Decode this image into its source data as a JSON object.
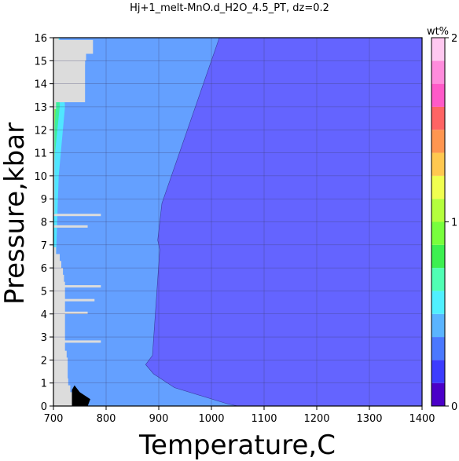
{
  "chart_data": {
    "type": "heatmap",
    "title": "Hj+1_melt-MnO.d_H2O_4.5_PT, dz=0.2",
    "xlabel": "Temperature,C",
    "ylabel": "Pressure,kbar",
    "xlim": [
      700,
      1400
    ],
    "ylim": [
      0,
      16
    ],
    "x_ticks": [
      "700",
      "800",
      "900",
      "1000",
      "1100",
      "1200",
      "1300",
      "1400"
    ],
    "y_ticks": [
      "0",
      "1",
      "2",
      "3",
      "4",
      "5",
      "6",
      "7",
      "8",
      "9",
      "10",
      "11",
      "12",
      "13",
      "14",
      "15",
      "16"
    ],
    "grid": true,
    "colorbar": {
      "label": "wt%",
      "range": [
        0,
        2
      ],
      "ticks": [
        "0",
        "1",
        "2"
      ],
      "step": 0.125,
      "colors": [
        "#4b00c8",
        "#3c3cff",
        "#4a78ff",
        "#5ab4ff",
        "#50f0ff",
        "#50ffb4",
        "#3cf050",
        "#78ff3c",
        "#b4ff3c",
        "#f0ff50",
        "#ffc850",
        "#ff9650",
        "#ff6464",
        "#ff5ac8",
        "#ff8cdc",
        "#ffc8f0"
      ]
    },
    "regions": [
      {
        "name": "",
        "value_range": [
          0.125,
          0.25
        ],
        "color": "#6464ff",
        "boundary": [
          [
            898,
            0
          ],
          [
            1400,
            0
          ],
          [
            1400,
            16
          ],
          [
            1015,
            16
          ],
          [
            906,
            8.8
          ],
          [
            898,
            7.2
          ],
          [
            902,
            6.8
          ],
          [
            888,
            2.2
          ],
          [
            875,
            1.8
          ],
          [
            890,
            1.4
          ],
          [
            930,
            0.8
          ],
          [
            1030,
            0.1
          ],
          [
            1050,
            0
          ]
        ]
      },
      {
        "name": "",
        "value_range": [
          0.25,
          0.375
        ],
        "color": "#64a0ff",
        "boundary": [
          [
            755,
            0
          ],
          [
            1400,
            0
          ],
          [
            1400,
            16
          ],
          [
            1015,
            16
          ],
          [
            906,
            8.8
          ],
          [
            898,
            7.2
          ],
          [
            902,
            6.8
          ],
          [
            888,
            2.2
          ],
          [
            875,
            1.8
          ],
          [
            890,
            1.4
          ],
          [
            930,
            0.8
          ],
          [
            1030,
            0.1
          ],
          [
            1050,
            0
          ]
        ]
      },
      {
        "name": "",
        "value_range": [
          0.375,
          0.5
        ],
        "color": "#50e6ff",
        "boundary": [
          [
            700,
            16
          ],
          [
            712,
            16
          ],
          [
            722,
            13
          ],
          [
            710,
            10
          ],
          [
            705,
            6.5
          ],
          [
            700,
            6.3
          ]
        ]
      },
      {
        "name": "",
        "value_range": [
          0.5,
          0.75
        ],
        "color": "#3cf0a0",
        "boundary": [
          [
            700,
            16
          ],
          [
            708,
            16
          ],
          [
            712,
            13
          ],
          [
            703,
            11
          ],
          [
            700,
            10
          ]
        ]
      },
      {
        "name": "",
        "value_range": [
          0.75,
          1.125
        ],
        "color": "#78f03c",
        "boundary": [
          [
            700,
            16
          ],
          [
            705,
            16
          ],
          [
            707,
            14
          ],
          [
            702,
            12
          ],
          [
            700,
            11.5
          ]
        ]
      }
    ],
    "missing_data_color": "#dcdcdc",
    "missing_data_steps": [
      [
        0,
        735
      ],
      [
        0.3,
        735
      ],
      [
        0.6,
        732
      ],
      [
        0.9,
        728
      ],
      [
        1.2,
        727
      ],
      [
        1.5,
        727
      ],
      [
        1.8,
        727
      ],
      [
        2.1,
        725
      ],
      [
        2.4,
        722
      ],
      [
        2.7,
        722
      ],
      [
        3.0,
        722
      ],
      [
        3.3,
        722
      ],
      [
        3.6,
        722
      ],
      [
        3.9,
        722
      ],
      [
        4.2,
        722
      ],
      [
        4.5,
        722
      ],
      [
        4.8,
        722
      ],
      [
        5.1,
        722
      ],
      [
        5.4,
        720
      ],
      [
        5.7,
        718
      ],
      [
        6.0,
        715
      ],
      [
        6.3,
        712
      ],
      [
        6.6,
        705
      ],
      [
        6.9,
        700
      ],
      [
        8.1,
        700
      ],
      [
        8.4,
        702
      ],
      [
        12.6,
        702
      ],
      [
        12.9,
        705
      ],
      [
        13.2,
        760
      ],
      [
        13.5,
        760
      ],
      [
        15.0,
        762
      ],
      [
        15.3,
        775
      ],
      [
        15.6,
        775
      ],
      [
        15.9,
        710
      ]
    ],
    "missing_data_lines": [
      {
        "y": 8.3,
        "x": [
          700,
          790
        ]
      },
      {
        "y": 7.8,
        "x": [
          700,
          765
        ]
      },
      {
        "y": 5.2,
        "x": [
          700,
          790
        ]
      },
      {
        "y": 4.6,
        "x": [
          700,
          778
        ]
      },
      {
        "y": 4.05,
        "x": [
          700,
          765
        ]
      },
      {
        "y": 2.8,
        "x": [
          700,
          790
        ]
      },
      {
        "y": 14.9,
        "x": [
          700,
          760
        ]
      }
    ],
    "low_value_patch": {
      "color": "#000000",
      "boundary": [
        [
          735,
          0
        ],
        [
          765,
          0
        ],
        [
          770,
          0.3
        ],
        [
          750,
          0.6
        ],
        [
          740,
          0.9
        ],
        [
          735,
          0.7
        ]
      ]
    }
  }
}
